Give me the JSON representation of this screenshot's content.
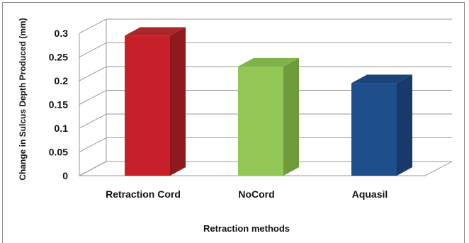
{
  "chart_data": {
    "type": "bar",
    "categories": [
      "Retraction Cord",
      "NoCord",
      "Aquasil"
    ],
    "values": [
      0.295,
      0.23,
      0.195
    ],
    "xlabel": "Retraction methods",
    "ylabel": "Change in Sulcus Depth Produced (mm)",
    "ylim": [
      0,
      0.3
    ],
    "yticks": [
      "0",
      "0.05",
      "0.1",
      "0.15",
      "0.2",
      "0.25",
      "0.3"
    ],
    "grid": true,
    "legend": "none",
    "colors": {
      "front": [
        "#c8202a",
        "#92c755",
        "#1f4e8c"
      ],
      "side": [
        "#8e1a1e",
        "#6f9a3b",
        "#173a6a"
      ],
      "top": [
        "#a9262b",
        "#80b24a",
        "#1b4478"
      ]
    }
  }
}
